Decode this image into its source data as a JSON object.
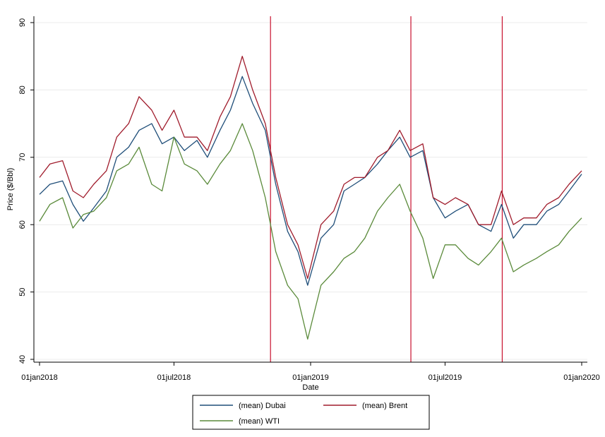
{
  "chart_data": {
    "type": "line",
    "title": "",
    "xlabel": "Date",
    "ylabel": "Price ($/Bbl)",
    "xlim": [
      "2018-01-01",
      "2020-01-01"
    ],
    "ylim": [
      40,
      90
    ],
    "yticks": [
      "40",
      "50",
      "60",
      "70",
      "80",
      "90"
    ],
    "xticks": [
      {
        "date": "2018-01-01",
        "label": "01jan2018"
      },
      {
        "date": "2018-07-01",
        "label": "01jul2018"
      },
      {
        "date": "2019-01-01",
        "label": "01jan2019"
      },
      {
        "date": "2019-07-01",
        "label": "01jul2019"
      },
      {
        "date": "2020-01-01",
        "label": "01jan2020"
      }
    ],
    "grid": true,
    "legend_position": "bottom",
    "vertical_lines": [
      "2018-11-08",
      "2019-05-16",
      "2019-09-16"
    ],
    "vertical_line_color": "#c8102e",
    "series": [
      {
        "name": "(mean) Dubai",
        "color": "#1f4e79",
        "x": [
          "2018-01-01",
          "2018-01-15",
          "2018-02-01",
          "2018-02-15",
          "2018-03-01",
          "2018-03-15",
          "2018-04-01",
          "2018-04-15",
          "2018-05-01",
          "2018-05-15",
          "2018-06-01",
          "2018-06-15",
          "2018-07-01",
          "2018-07-15",
          "2018-08-01",
          "2018-08-15",
          "2018-09-01",
          "2018-09-15",
          "2018-10-01",
          "2018-10-15",
          "2018-11-01",
          "2018-11-15",
          "2018-12-01",
          "2018-12-15",
          "2018-12-28",
          "2019-01-15",
          "2019-02-01",
          "2019-02-15",
          "2019-03-01",
          "2019-03-15",
          "2019-04-01",
          "2019-04-15",
          "2019-05-01",
          "2019-05-15",
          "2019-06-01",
          "2019-06-15",
          "2019-07-01",
          "2019-07-15",
          "2019-08-01",
          "2019-08-15",
          "2019-09-01",
          "2019-09-15",
          "2019-10-01",
          "2019-10-15",
          "2019-11-01",
          "2019-11-15",
          "2019-12-01",
          "2019-12-15",
          "2020-01-01"
        ],
        "values": [
          64.5,
          66,
          66.5,
          63,
          60.5,
          62.5,
          65,
          70,
          71.5,
          74,
          75,
          72,
          73,
          71,
          72.5,
          70,
          74,
          77,
          82,
          78,
          74,
          66,
          59,
          56,
          51,
          58,
          60,
          65,
          66,
          67,
          69,
          71,
          73,
          70,
          71,
          64,
          61,
          62,
          63,
          60,
          59,
          63,
          58,
          60,
          60,
          62,
          63,
          65,
          67.5
        ]
      },
      {
        "name": "(mean) Brent",
        "color": "#a01c2c",
        "x": [
          "2018-01-01",
          "2018-01-15",
          "2018-02-01",
          "2018-02-15",
          "2018-03-01",
          "2018-03-15",
          "2018-04-01",
          "2018-04-15",
          "2018-05-01",
          "2018-05-15",
          "2018-06-01",
          "2018-06-15",
          "2018-07-01",
          "2018-07-15",
          "2018-08-01",
          "2018-08-15",
          "2018-09-01",
          "2018-09-15",
          "2018-10-01",
          "2018-10-15",
          "2018-11-01",
          "2018-11-15",
          "2018-12-01",
          "2018-12-15",
          "2018-12-28",
          "2019-01-15",
          "2019-02-01",
          "2019-02-15",
          "2019-03-01",
          "2019-03-15",
          "2019-04-01",
          "2019-04-15",
          "2019-05-01",
          "2019-05-15",
          "2019-06-01",
          "2019-06-15",
          "2019-07-01",
          "2019-07-15",
          "2019-08-01",
          "2019-08-15",
          "2019-09-01",
          "2019-09-15",
          "2019-10-01",
          "2019-10-15",
          "2019-11-01",
          "2019-11-15",
          "2019-12-01",
          "2019-12-15",
          "2020-01-01"
        ],
        "values": [
          67,
          69,
          69.5,
          65,
          64,
          66,
          68,
          73,
          75,
          79,
          77,
          74,
          77,
          73,
          73,
          71,
          76,
          79,
          85,
          80,
          75,
          67,
          60,
          57,
          52,
          60,
          62,
          66,
          67,
          67,
          70,
          71,
          74,
          71,
          72,
          64,
          63,
          64,
          63,
          60,
          60,
          65,
          60,
          61,
          61,
          63,
          64,
          66,
          68
        ]
      },
      {
        "name": "(mean) WTI",
        "color": "#5a8a3a",
        "x": [
          "2018-01-01",
          "2018-01-15",
          "2018-02-01",
          "2018-02-15",
          "2018-03-01",
          "2018-03-15",
          "2018-04-01",
          "2018-04-15",
          "2018-05-01",
          "2018-05-15",
          "2018-06-01",
          "2018-06-15",
          "2018-07-01",
          "2018-07-15",
          "2018-08-01",
          "2018-08-15",
          "2018-09-01",
          "2018-09-15",
          "2018-10-01",
          "2018-10-15",
          "2018-11-01",
          "2018-11-15",
          "2018-12-01",
          "2018-12-15",
          "2018-12-28",
          "2019-01-15",
          "2019-02-01",
          "2019-02-15",
          "2019-03-01",
          "2019-03-15",
          "2019-04-01",
          "2019-04-15",
          "2019-05-01",
          "2019-05-15",
          "2019-06-01",
          "2019-06-15",
          "2019-07-01",
          "2019-07-15",
          "2019-08-01",
          "2019-08-15",
          "2019-09-01",
          "2019-09-15",
          "2019-10-01",
          "2019-10-15",
          "2019-11-01",
          "2019-11-15",
          "2019-12-01",
          "2019-12-15",
          "2020-01-01"
        ],
        "values": [
          60.5,
          63,
          64,
          59.5,
          61.5,
          62,
          64,
          68,
          69,
          71.5,
          66,
          65,
          73,
          69,
          68,
          66,
          69,
          71,
          75,
          71,
          64,
          56,
          51,
          49,
          43,
          51,
          53,
          55,
          56,
          58,
          62,
          64,
          66,
          62,
          58,
          52,
          57,
          57,
          55,
          54,
          56,
          58,
          53,
          54,
          55,
          56,
          57,
          59,
          61
        ]
      }
    ]
  }
}
